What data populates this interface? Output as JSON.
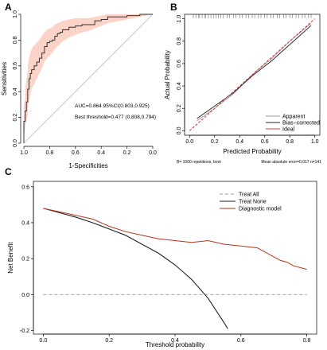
{
  "chart_data": [
    {
      "panel": "A",
      "type": "line",
      "title": "",
      "xlabel": "1-Specificities",
      "ylabel": "Sensitivities",
      "xlim": [
        1.0,
        0.0
      ],
      "ylim": [
        0.0,
        1.0
      ],
      "xticks": [
        "1.0",
        "0.8",
        "0.6",
        "0.4",
        "0.2",
        "0.0"
      ],
      "yticks": [
        "0.0",
        "0.2",
        "0.4",
        "0.6",
        "0.8",
        "1.0"
      ],
      "annotations": [
        "AUC=0.864 95%CI(0.803,0.925)",
        "Best threshold=0.477 (0.808,0.794)"
      ],
      "series": [
        {
          "specificity": [
            1.0,
            1.0,
            0.99,
            0.99,
            0.98,
            0.97,
            0.97,
            0.96,
            0.95,
            0.94,
            0.92,
            0.9,
            0.88,
            0.86,
            0.84,
            0.82,
            0.8,
            0.78,
            0.76,
            0.74,
            0.72,
            0.7,
            0.65,
            0.6,
            0.55,
            0.5,
            0.45,
            0.4,
            0.35,
            0.3,
            0.2,
            0.1,
            0.0
          ],
          "sensitivity": [
            0.0,
            0.17,
            0.2,
            0.25,
            0.32,
            0.38,
            0.42,
            0.5,
            0.54,
            0.57,
            0.6,
            0.63,
            0.66,
            0.7,
            0.75,
            0.78,
            0.79,
            0.8,
            0.83,
            0.85,
            0.86,
            0.88,
            0.9,
            0.91,
            0.92,
            0.92,
            0.95,
            0.96,
            0.98,
            0.98,
            0.99,
            1.0,
            1.0
          ],
          "ci_lower": [
            0.0,
            0.08,
            0.1,
            0.13,
            0.18,
            0.22,
            0.27,
            0.33,
            0.38,
            0.42,
            0.46,
            0.5,
            0.54,
            0.58,
            0.63,
            0.66,
            0.68,
            0.7,
            0.73,
            0.75,
            0.77,
            0.79,
            0.82,
            0.84,
            0.86,
            0.87,
            0.89,
            0.91,
            0.93,
            0.94,
            0.96,
            0.98,
            1.0
          ],
          "ci_upper": [
            0.0,
            0.3,
            0.35,
            0.42,
            0.5,
            0.56,
            0.6,
            0.66,
            0.7,
            0.73,
            0.76,
            0.78,
            0.8,
            0.83,
            0.86,
            0.88,
            0.89,
            0.9,
            0.92,
            0.93,
            0.94,
            0.95,
            0.96,
            0.97,
            0.97,
            0.97,
            0.98,
            0.99,
            1.0,
            1.0,
            1.0,
            1.0,
            1.0
          ]
        }
      ],
      "colors": {
        "roc": "#333333",
        "ci": "#fbd3c8",
        "diagonal": "#bbbbbb"
      }
    },
    {
      "panel": "B",
      "type": "line",
      "title": "",
      "xlabel": "Predicted Probability",
      "ylabel": "Actual Probability",
      "xlim": [
        0.0,
        1.0
      ],
      "ylim": [
        0.0,
        1.0
      ],
      "xticks": [
        "0.0",
        "0.2",
        "0.4",
        "0.6",
        "0.8",
        "1.0"
      ],
      "yticks": [
        "0.0",
        "0.2",
        "0.4",
        "0.6",
        "0.8",
        "1.0"
      ],
      "footnote_left": "B= 1000 repetitions, boot",
      "footnote_right": "Mean absolute error=0.017 n=141",
      "legend": [
        "Apparent",
        "Bias−corrected",
        "Ideal"
      ],
      "series": [
        {
          "name": "Apparent",
          "x": [
            0.06,
            0.2,
            0.35,
            0.5,
            0.65,
            0.8,
            0.97
          ],
          "y": [
            0.09,
            0.2,
            0.33,
            0.5,
            0.64,
            0.8,
            0.96
          ]
        },
        {
          "name": "Bias−corrected",
          "x": [
            0.06,
            0.2,
            0.35,
            0.5,
            0.65,
            0.8,
            0.97
          ],
          "y": [
            0.11,
            0.22,
            0.34,
            0.49,
            0.62,
            0.77,
            0.94
          ]
        },
        {
          "name": "Ideal",
          "x": [
            0.0,
            1.0
          ],
          "y": [
            0.0,
            1.0
          ]
        }
      ],
      "rug_x": [
        0.03,
        0.05,
        0.07,
        0.08,
        0.1,
        0.12,
        0.13,
        0.15,
        0.17,
        0.19,
        0.21,
        0.23,
        0.25,
        0.27,
        0.3,
        0.32,
        0.35,
        0.37,
        0.4,
        0.42,
        0.45,
        0.47,
        0.5,
        0.52,
        0.55,
        0.57,
        0.6,
        0.62,
        0.65,
        0.67,
        0.7,
        0.72,
        0.75,
        0.77,
        0.8,
        0.82,
        0.85,
        0.87,
        0.9,
        0.92,
        0.95,
        0.97
      ],
      "colors": {
        "apparent": "#9a9a9a",
        "bias": "#222222",
        "ideal": "#e03a3a"
      }
    },
    {
      "panel": "C",
      "type": "line",
      "title": "",
      "xlabel": "Threshold probability",
      "ylabel": "Net Benefit",
      "xlim": [
        -0.03,
        0.83
      ],
      "ylim": [
        -0.22,
        0.63
      ],
      "xticks": [
        "0.0",
        "0.2",
        "0.4",
        "0.6",
        "0.8"
      ],
      "yticks": [
        "-0.2",
        "0.0",
        "0.2",
        "0.4",
        "0.6"
      ],
      "legend": [
        "Treat All",
        "Treat None",
        "Diagnostic model"
      ],
      "series": [
        {
          "name": "Treat All",
          "x": [
            0.0,
            0.8
          ],
          "y": [
            0.0,
            0.0
          ]
        },
        {
          "name": "Treat None",
          "x": [
            0.0,
            0.05,
            0.1,
            0.15,
            0.2,
            0.25,
            0.3,
            0.35,
            0.4,
            0.45,
            0.5,
            0.55,
            0.56
          ],
          "y": [
            0.48,
            0.455,
            0.43,
            0.4,
            0.365,
            0.33,
            0.28,
            0.23,
            0.165,
            0.085,
            -0.02,
            -0.16,
            -0.19
          ]
        },
        {
          "name": "Diagnostic model",
          "x": [
            0.0,
            0.05,
            0.1,
            0.15,
            0.2,
            0.25,
            0.3,
            0.35,
            0.4,
            0.45,
            0.5,
            0.55,
            0.6,
            0.65,
            0.7,
            0.72,
            0.74,
            0.76,
            0.78,
            0.8
          ],
          "y": [
            0.48,
            0.46,
            0.44,
            0.42,
            0.38,
            0.35,
            0.33,
            0.31,
            0.3,
            0.29,
            0.3,
            0.28,
            0.27,
            0.26,
            0.21,
            0.19,
            0.18,
            0.16,
            0.15,
            0.14
          ]
        }
      ],
      "colors": {
        "all": "#999999",
        "none": "#222222",
        "model": "#b5341f"
      }
    }
  ]
}
